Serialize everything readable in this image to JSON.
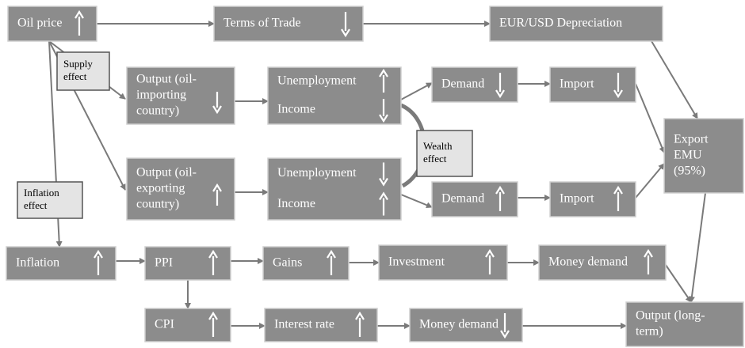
{
  "nodes": [
    {
      "rows": [
        {
          "text": [
            "Oil price"
          ],
          "arrow": "up"
        }
      ]
    },
    {
      "rows": [
        {
          "text": [
            "Terms of Trade"
          ],
          "arrow": "down"
        }
      ]
    },
    {
      "rows": [
        {
          "text": [
            "EUR/USD Depreciation"
          ]
        }
      ]
    },
    {
      "style": "light",
      "rows": [
        {
          "text": [
            "Supply",
            "effect"
          ]
        }
      ]
    },
    {
      "rows": [
        {
          "text": [
            "Output (oil-",
            "importing",
            "country)"
          ],
          "arrow": "down"
        }
      ]
    },
    {
      "rows": [
        {
          "text": [
            "Unemployment"
          ],
          "arrow": "up"
        },
        {
          "text": [
            "Income"
          ],
          "arrow": "down"
        }
      ]
    },
    {
      "rows": [
        {
          "text": [
            "Demand"
          ],
          "arrow": "down"
        }
      ]
    },
    {
      "rows": [
        {
          "text": [
            "Import"
          ],
          "arrow": "down"
        }
      ]
    },
    {
      "style": "light",
      "rows": [
        {
          "text": [
            "Wealth",
            "effect"
          ]
        }
      ]
    },
    {
      "rows": [
        {
          "text": [
            "Export",
            "EMU",
            "(95%)"
          ]
        }
      ]
    },
    {
      "rows": [
        {
          "text": [
            "Output (oil-",
            "exporting",
            "country)"
          ],
          "arrow": "up"
        }
      ]
    },
    {
      "rows": [
        {
          "text": [
            "Unemployment"
          ],
          "arrow": "down"
        },
        {
          "text": [
            "Income"
          ],
          "arrow": "up"
        }
      ]
    },
    {
      "rows": [
        {
          "text": [
            "Demand"
          ],
          "arrow": "up"
        }
      ]
    },
    {
      "rows": [
        {
          "text": [
            "Import"
          ],
          "arrow": "up"
        }
      ]
    },
    {
      "style": "light",
      "rows": [
        {
          "text": [
            "Inflation",
            "effect"
          ]
        }
      ]
    },
    {
      "rows": [
        {
          "text": [
            "Inflation"
          ],
          "arrow": "up"
        }
      ]
    },
    {
      "rows": [
        {
          "text": [
            "PPI"
          ],
          "arrow": "up"
        }
      ]
    },
    {
      "rows": [
        {
          "text": [
            "Gains"
          ],
          "arrow": "up"
        }
      ]
    },
    {
      "rows": [
        {
          "text": [
            "Investment"
          ],
          "arrow": "up"
        }
      ]
    },
    {
      "rows": [
        {
          "text": [
            "Money demand"
          ],
          "arrow": "up"
        }
      ]
    },
    {
      "rows": [
        {
          "text": [
            "CPI"
          ],
          "arrow": "up"
        }
      ]
    },
    {
      "rows": [
        {
          "text": [
            "Interest rate"
          ],
          "arrow": "up"
        }
      ]
    },
    {
      "rows": [
        {
          "text": [
            "Money demand"
          ],
          "arrow": "down"
        }
      ]
    },
    {
      "rows": [
        {
          "text": [
            "Output (long-",
            "term)"
          ]
        }
      ]
    }
  ]
}
